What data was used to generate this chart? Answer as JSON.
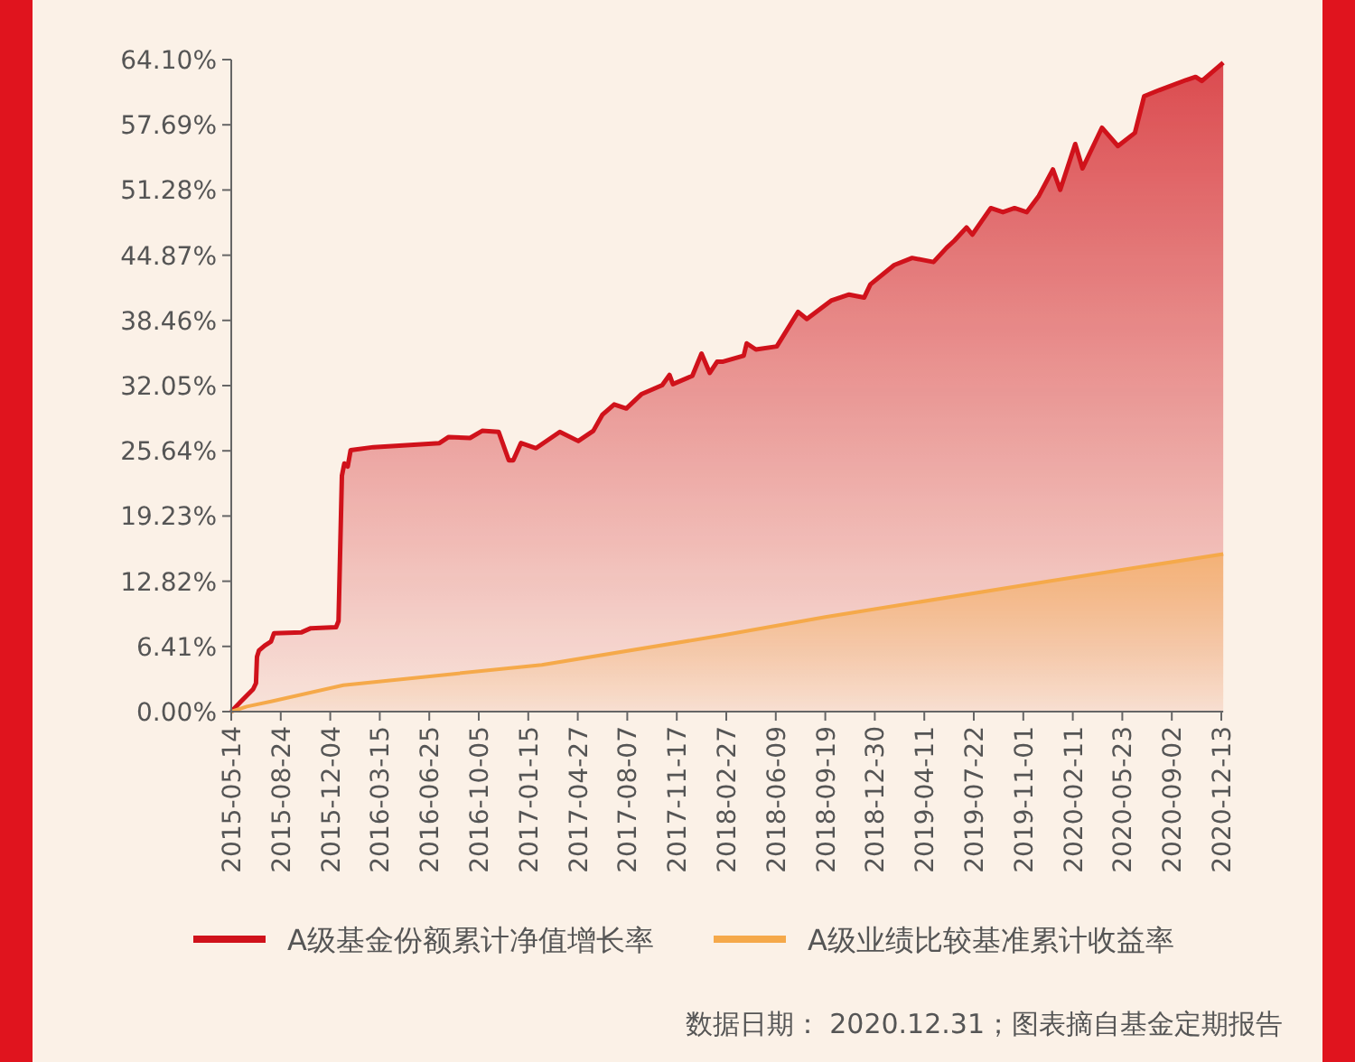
{
  "chart_data": {
    "type": "area",
    "grid": false,
    "legend": "bottom",
    "ylim": [
      0,
      64.1
    ],
    "yticks": [
      {
        "value": 0,
        "label": "0.00%"
      },
      {
        "value": 6.41,
        "label": "6.41%"
      },
      {
        "value": 12.82,
        "label": "12.82%"
      },
      {
        "value": 19.23,
        "label": "19.23%"
      },
      {
        "value": 25.64,
        "label": "25.64%"
      },
      {
        "value": 32.05,
        "label": "32.05%"
      },
      {
        "value": 38.46,
        "label": "38.46%"
      },
      {
        "value": 44.87,
        "label": "44.87%"
      },
      {
        "value": 51.28,
        "label": "51.28%"
      },
      {
        "value": 57.69,
        "label": "57.69%"
      },
      {
        "value": 64.1,
        "label": "64.10%"
      }
    ],
    "xlim": [
      "2015-05-14",
      "2020-12-17"
    ],
    "xticks": [
      "2015-05-14",
      "2015-08-24",
      "2015-12-04",
      "2016-03-15",
      "2016-06-25",
      "2016-10-05",
      "2017-01-15",
      "2017-04-27",
      "2017-08-07",
      "2017-11-17",
      "2018-02-27",
      "2018-06-09",
      "2018-09-19",
      "2018-12-30",
      "2019-04-11",
      "2019-07-22",
      "2019-11-01",
      "2020-02-11",
      "2020-05-23",
      "2020-09-02",
      "2020-12-13"
    ],
    "annotations": [
      "数据日期： 2020.12.31；图表摘自基金定期报告"
    ],
    "series": [
      {
        "name": "A级基金份额累计净值增长率",
        "color": "#d0121b",
        "x": [
          "2015-05-14",
          "2015-06-03",
          "2015-06-28",
          "2015-07-04",
          "2015-07-06",
          "2015-07-10",
          "2015-07-22",
          "2015-08-04",
          "2015-08-10",
          "2015-10-06",
          "2015-10-25",
          "2015-12-16",
          "2015-12-21",
          "2015-12-28",
          "2016-01-02",
          "2016-01-09",
          "2016-01-15",
          "2016-03-02",
          "2016-07-16",
          "2016-08-04",
          "2016-09-17",
          "2016-10-12",
          "2016-11-15",
          "2016-12-06",
          "2016-12-15",
          "2016-12-31",
          "2017-01-31",
          "2017-03-21",
          "2017-04-28",
          "2017-05-29",
          "2017-06-17",
          "2017-07-11",
          "2017-08-05",
          "2017-09-05",
          "2017-10-18",
          "2017-11-02",
          "2017-11-09",
          "2017-12-19",
          "2018-01-07",
          "2018-01-24",
          "2018-02-08",
          "2018-02-19",
          "2018-04-04",
          "2018-04-10",
          "2018-04-29",
          "2018-06-11",
          "2018-07-25",
          "2018-08-12",
          "2018-10-01",
          "2018-11-07",
          "2018-12-08",
          "2018-12-21",
          "2019-02-08",
          "2019-03-17",
          "2019-04-30",
          "2019-05-27",
          "2019-06-12",
          "2019-07-07",
          "2019-07-19",
          "2019-08-26",
          "2019-09-20",
          "2019-10-14",
          "2019-11-08",
          "2019-12-03",
          "2020-01-01",
          "2020-01-16",
          "2020-02-16",
          "2020-03-02",
          "2020-04-11",
          "2020-05-14",
          "2020-06-18",
          "2020-07-07",
          "2020-08-07",
          "2020-10-02",
          "2020-10-21",
          "2020-11-03",
          "2020-12-17"
        ],
        "values": [
          0,
          1.0,
          2.2,
          2.8,
          5.4,
          6.0,
          6.5,
          6.9,
          7.7,
          7.8,
          8.2,
          8.3,
          8.9,
          23.2,
          24.4,
          24.1,
          25.7,
          26.0,
          26.4,
          27.0,
          26.9,
          27.6,
          27.5,
          24.7,
          24.7,
          26.4,
          25.9,
          27.5,
          26.6,
          27.6,
          29.2,
          30.2,
          29.8,
          31.2,
          32.1,
          33.1,
          32.2,
          33.0,
          35.2,
          33.3,
          34.4,
          34.4,
          35.0,
          36.2,
          35.6,
          35.9,
          39.3,
          38.6,
          40.4,
          41.0,
          40.7,
          42.0,
          43.9,
          44.6,
          44.2,
          45.6,
          46.3,
          47.6,
          46.9,
          49.5,
          49.1,
          49.5,
          49.1,
          50.7,
          53.3,
          51.3,
          55.8,
          53.4,
          57.4,
          55.6,
          56.9,
          60.5,
          61.1,
          62.1,
          62.4,
          62.0,
          63.8
        ]
      },
      {
        "name": "A级业绩比较基准累计收益率",
        "color": "#f5a94a",
        "x": [
          "2015-05-14",
          "2015-06-15",
          "2015-08-04",
          "2015-12-31",
          "2017-02-12",
          "2018-02-19",
          "2018-09-19",
          "2019-12-22",
          "2020-12-17"
        ],
        "values": [
          0,
          0.5,
          1.0,
          2.6,
          4.6,
          7.5,
          9.3,
          12.8,
          15.5
        ]
      }
    ]
  }
}
